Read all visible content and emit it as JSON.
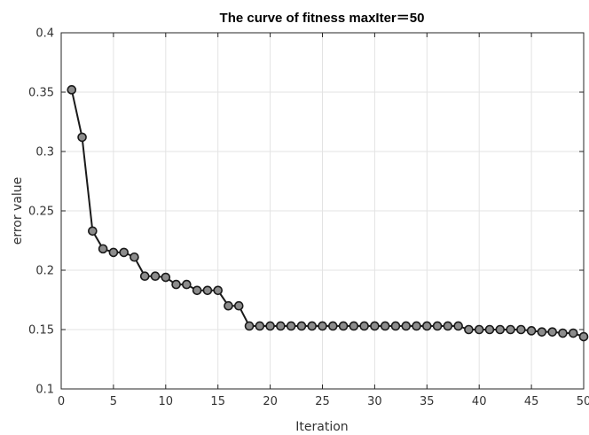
{
  "chart_data": {
    "type": "line",
    "title": "The curve of fitness maxIter＝50",
    "xlabel": "Iteration",
    "ylabel": "error value",
    "xlim": [
      0,
      50
    ],
    "ylim": [
      0.1,
      0.4
    ],
    "xticks": [
      0,
      5,
      10,
      15,
      20,
      25,
      30,
      35,
      40,
      45,
      50
    ],
    "yticks": [
      0.1,
      0.15,
      0.2,
      0.25,
      0.3,
      0.35,
      0.4
    ],
    "grid": true,
    "marker": "circle",
    "colors": {
      "line": "#1a1a1a",
      "marker_fill": "#8c8c8c",
      "grid": "#e3e3e3"
    },
    "x": [
      1,
      2,
      3,
      4,
      5,
      6,
      7,
      8,
      9,
      10,
      11,
      12,
      13,
      14,
      15,
      16,
      17,
      18,
      19,
      20,
      21,
      22,
      23,
      24,
      25,
      26,
      27,
      28,
      29,
      30,
      31,
      32,
      33,
      34,
      35,
      36,
      37,
      38,
      39,
      40,
      41,
      42,
      43,
      44,
      45,
      46,
      47,
      48,
      49,
      50
    ],
    "series": [
      {
        "values": [
          0.352,
          0.312,
          0.233,
          0.218,
          0.215,
          0.215,
          0.211,
          0.195,
          0.195,
          0.194,
          0.188,
          0.188,
          0.183,
          0.183,
          0.183,
          0.17,
          0.17,
          0.153,
          0.153,
          0.153,
          0.153,
          0.153,
          0.153,
          0.153,
          0.153,
          0.153,
          0.153,
          0.153,
          0.153,
          0.153,
          0.153,
          0.153,
          0.153,
          0.153,
          0.153,
          0.153,
          0.153,
          0.153,
          0.15,
          0.15,
          0.15,
          0.15,
          0.15,
          0.15,
          0.149,
          0.148,
          0.148,
          0.147,
          0.147,
          0.144
        ]
      }
    ]
  }
}
